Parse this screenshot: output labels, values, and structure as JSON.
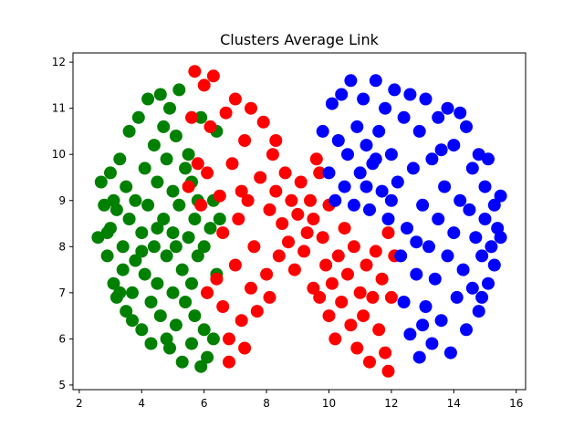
{
  "chart_data": {
    "type": "scatter",
    "title": "Clusters Average Link",
    "xlabel": "",
    "ylabel": "",
    "xlim": [
      1.8,
      16.3
    ],
    "ylim": [
      4.9,
      12.2
    ],
    "xticks": [
      2,
      4,
      6,
      8,
      10,
      12,
      14,
      16
    ],
    "yticks": [
      5,
      6,
      7,
      8,
      9,
      10,
      11,
      12
    ],
    "grid": false,
    "legend": "none",
    "series": [
      {
        "color": "#008000",
        "points": [
          [
            2.6,
            8.2
          ],
          [
            2.7,
            9.4
          ],
          [
            2.8,
            8.9
          ],
          [
            2.9,
            7.8
          ],
          [
            3.0,
            8.4
          ],
          [
            3.0,
            9.6
          ],
          [
            3.1,
            7.2
          ],
          [
            3.2,
            8.8
          ],
          [
            3.2,
            6.9
          ],
          [
            3.3,
            9.9
          ],
          [
            3.4,
            8.0
          ],
          [
            3.4,
            7.5
          ],
          [
            3.5,
            9.3
          ],
          [
            3.6,
            10.5
          ],
          [
            3.6,
            8.6
          ],
          [
            3.7,
            7.0
          ],
          [
            3.7,
            6.4
          ],
          [
            3.8,
            9.0
          ],
          [
            3.8,
            7.7
          ],
          [
            3.9,
            10.8
          ],
          [
            4.0,
            8.3
          ],
          [
            4.0,
            6.2
          ],
          [
            4.1,
            9.7
          ],
          [
            4.1,
            7.4
          ],
          [
            4.2,
            11.2
          ],
          [
            4.2,
            8.9
          ],
          [
            4.3,
            6.8
          ],
          [
            4.3,
            5.9
          ],
          [
            4.4,
            10.2
          ],
          [
            4.4,
            8.0
          ],
          [
            4.5,
            9.4
          ],
          [
            4.5,
            7.2
          ],
          [
            4.6,
            11.3
          ],
          [
            4.6,
            6.5
          ],
          [
            4.7,
            10.6
          ],
          [
            4.7,
            8.6
          ],
          [
            4.8,
            9.9
          ],
          [
            4.8,
            7.8
          ],
          [
            4.9,
            11.0
          ],
          [
            4.9,
            5.8
          ],
          [
            5.0,
            9.2
          ],
          [
            5.0,
            7.0
          ],
          [
            5.0,
            8.3
          ],
          [
            5.1,
            10.4
          ],
          [
            5.1,
            6.3
          ],
          [
            5.2,
            11.4
          ],
          [
            5.2,
            8.9
          ],
          [
            5.3,
            7.5
          ],
          [
            5.3,
            5.5
          ],
          [
            5.4,
            9.7
          ],
          [
            5.4,
            6.8
          ],
          [
            5.5,
            8.2
          ],
          [
            5.5,
            10.0
          ],
          [
            5.6,
            7.2
          ],
          [
            5.6,
            5.9
          ],
          [
            5.7,
            8.6
          ],
          [
            5.7,
            6.5
          ],
          [
            5.8,
            9.0
          ],
          [
            5.8,
            7.8
          ],
          [
            5.9,
            5.4
          ],
          [
            6.0,
            6.2
          ],
          [
            6.0,
            8.0
          ],
          [
            6.1,
            7.0
          ],
          [
            6.1,
            5.6
          ],
          [
            6.2,
            8.4
          ],
          [
            6.3,
            9.0
          ],
          [
            6.3,
            6.0
          ],
          [
            6.4,
            7.4
          ],
          [
            6.5,
            8.6
          ],
          [
            6.4,
            10.5
          ],
          [
            5.9,
            10.8
          ],
          [
            3.1,
            9.0
          ],
          [
            3.5,
            6.6
          ],
          [
            4.0,
            7.9
          ],
          [
            4.5,
            8.4
          ],
          [
            5.1,
            8.0
          ],
          [
            2.9,
            8.3
          ],
          [
            3.3,
            7.0
          ],
          [
            4.8,
            6.0
          ],
          [
            5.6,
            9.4
          ]
        ]
      },
      {
        "color": "#ff0000",
        "points": [
          [
            5.5,
            9.3
          ],
          [
            5.6,
            10.8
          ],
          [
            5.7,
            11.8
          ],
          [
            5.8,
            9.8
          ],
          [
            5.9,
            8.9
          ],
          [
            6.0,
            11.5
          ],
          [
            6.1,
            9.6
          ],
          [
            6.1,
            7.0
          ],
          [
            6.2,
            10.6
          ],
          [
            6.3,
            11.7
          ],
          [
            6.4,
            7.3
          ],
          [
            6.5,
            9.1
          ],
          [
            6.6,
            8.3
          ],
          [
            6.6,
            6.7
          ],
          [
            6.7,
            10.9
          ],
          [
            6.8,
            6.0
          ],
          [
            6.8,
            5.5
          ],
          [
            6.9,
            9.8
          ],
          [
            7.0,
            11.2
          ],
          [
            7.0,
            7.6
          ],
          [
            7.1,
            8.6
          ],
          [
            7.2,
            6.4
          ],
          [
            7.3,
            10.3
          ],
          [
            7.3,
            5.8
          ],
          [
            7.4,
            9.0
          ],
          [
            7.5,
            7.1
          ],
          [
            7.5,
            11.0
          ],
          [
            7.6,
            8.0
          ],
          [
            7.7,
            6.6
          ],
          [
            7.8,
            9.5
          ],
          [
            7.9,
            10.7
          ],
          [
            8.0,
            7.4
          ],
          [
            8.1,
            8.8
          ],
          [
            8.1,
            6.9
          ],
          [
            8.2,
            10.0
          ],
          [
            8.3,
            9.2
          ],
          [
            8.4,
            7.8
          ],
          [
            8.5,
            8.5
          ],
          [
            8.6,
            9.6
          ],
          [
            8.7,
            8.1
          ],
          [
            8.8,
            9.0
          ],
          [
            8.9,
            7.5
          ],
          [
            9.0,
            8.7
          ],
          [
            9.1,
            9.4
          ],
          [
            9.2,
            7.9
          ],
          [
            9.3,
            8.3
          ],
          [
            9.4,
            9.0
          ],
          [
            9.5,
            7.1
          ],
          [
            9.5,
            8.6
          ],
          [
            9.6,
            9.9
          ],
          [
            9.7,
            6.9
          ],
          [
            9.8,
            8.2
          ],
          [
            9.9,
            7.6
          ],
          [
            10.0,
            6.5
          ],
          [
            10.0,
            8.9
          ],
          [
            10.1,
            7.2
          ],
          [
            10.2,
            6.0
          ],
          [
            10.3,
            7.8
          ],
          [
            10.4,
            6.8
          ],
          [
            10.5,
            8.4
          ],
          [
            10.6,
            7.4
          ],
          [
            10.7,
            6.3
          ],
          [
            10.8,
            8.0
          ],
          [
            10.9,
            5.8
          ],
          [
            11.0,
            7.0
          ],
          [
            11.1,
            6.5
          ],
          [
            11.2,
            7.6
          ],
          [
            11.3,
            5.5
          ],
          [
            11.4,
            6.9
          ],
          [
            11.5,
            7.9
          ],
          [
            11.6,
            6.2
          ],
          [
            11.7,
            7.3
          ],
          [
            11.8,
            5.7
          ],
          [
            11.9,
            8.3
          ],
          [
            12.0,
            6.9
          ],
          [
            12.1,
            7.8
          ],
          [
            11.9,
            5.3
          ],
          [
            9.7,
            9.6
          ],
          [
            8.3,
            10.3
          ],
          [
            7.2,
            9.2
          ]
        ]
      },
      {
        "color": "#0000ff",
        "points": [
          [
            9.8,
            10.5
          ],
          [
            10.0,
            9.6
          ],
          [
            10.1,
            11.1
          ],
          [
            10.2,
            9.0
          ],
          [
            10.3,
            10.3
          ],
          [
            10.4,
            11.3
          ],
          [
            10.5,
            9.3
          ],
          [
            10.6,
            10.0
          ],
          [
            10.7,
            11.6
          ],
          [
            10.8,
            8.9
          ],
          [
            10.9,
            10.6
          ],
          [
            11.0,
            9.6
          ],
          [
            11.1,
            11.2
          ],
          [
            11.2,
            10.2
          ],
          [
            11.3,
            8.8
          ],
          [
            11.4,
            9.8
          ],
          [
            11.5,
            11.6
          ],
          [
            11.6,
            10.5
          ],
          [
            11.7,
            9.2
          ],
          [
            11.8,
            11.0
          ],
          [
            11.9,
            8.6
          ],
          [
            12.0,
            10.0
          ],
          [
            12.1,
            11.4
          ],
          [
            12.2,
            9.4
          ],
          [
            12.3,
            7.8
          ],
          [
            12.4,
            10.8
          ],
          [
            12.4,
            6.8
          ],
          [
            12.5,
            8.4
          ],
          [
            12.6,
            11.3
          ],
          [
            12.6,
            6.1
          ],
          [
            12.7,
            9.7
          ],
          [
            12.8,
            7.4
          ],
          [
            12.9,
            10.5
          ],
          [
            12.9,
            5.6
          ],
          [
            13.0,
            8.9
          ],
          [
            13.1,
            11.2
          ],
          [
            13.1,
            6.7
          ],
          [
            13.2,
            8.0
          ],
          [
            13.3,
            9.9
          ],
          [
            13.3,
            5.9
          ],
          [
            13.4,
            7.3
          ],
          [
            13.5,
            10.8
          ],
          [
            13.5,
            8.6
          ],
          [
            13.6,
            6.4
          ],
          [
            13.7,
            9.3
          ],
          [
            13.8,
            7.8
          ],
          [
            13.8,
            11.0
          ],
          [
            13.9,
            5.7
          ],
          [
            14.0,
            8.3
          ],
          [
            14.0,
            10.2
          ],
          [
            14.1,
            6.9
          ],
          [
            14.2,
            9.0
          ],
          [
            14.3,
            7.5
          ],
          [
            14.4,
            10.6
          ],
          [
            14.4,
            6.2
          ],
          [
            14.5,
            8.8
          ],
          [
            14.6,
            7.1
          ],
          [
            14.6,
            9.7
          ],
          [
            14.7,
            8.2
          ],
          [
            14.8,
            6.6
          ],
          [
            14.8,
            10.0
          ],
          [
            14.9,
            7.8
          ],
          [
            15.0,
            9.3
          ],
          [
            15.0,
            8.6
          ],
          [
            15.1,
            7.2
          ],
          [
            15.1,
            9.9
          ],
          [
            15.2,
            8.0
          ],
          [
            15.3,
            8.9
          ],
          [
            15.3,
            7.6
          ],
          [
            15.4,
            8.4
          ],
          [
            15.5,
            9.1
          ],
          [
            15.5,
            8.2
          ],
          [
            12.0,
            9.0
          ],
          [
            11.5,
            9.9
          ],
          [
            13.6,
            10.1
          ],
          [
            14.2,
            10.9
          ],
          [
            12.8,
            8.1
          ],
          [
            11.2,
            9.3
          ],
          [
            13.0,
            6.3
          ],
          [
            14.9,
            6.9
          ]
        ]
      }
    ]
  }
}
